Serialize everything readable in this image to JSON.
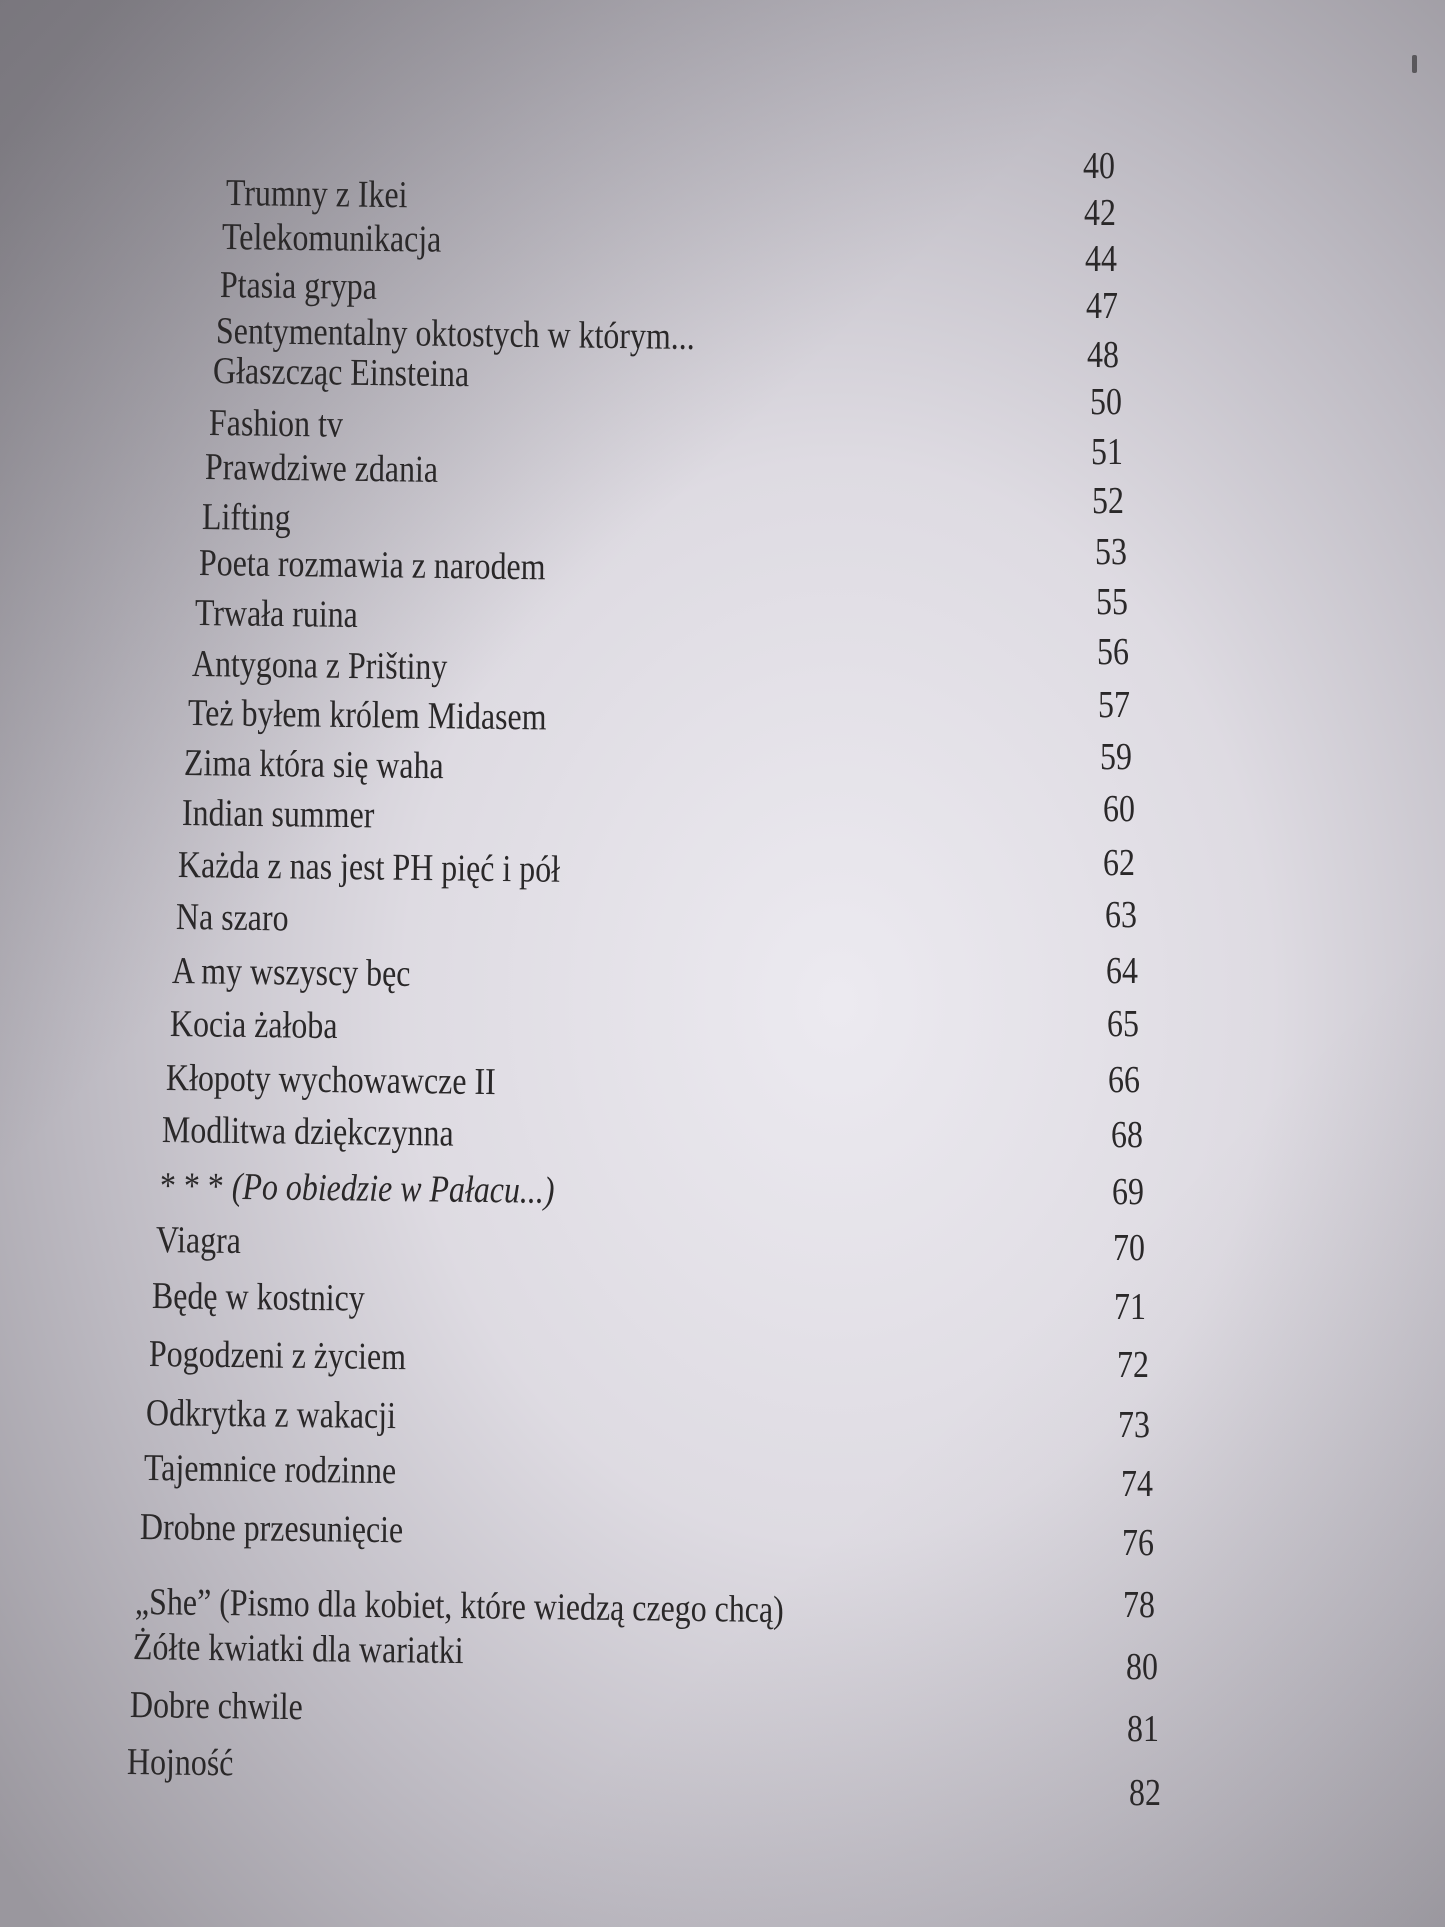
{
  "toc": {
    "entries": [
      {
        "title": "Trumny z Ikei",
        "page": "40"
      },
      {
        "title": "Telekomunikacja",
        "page": "42"
      },
      {
        "title": "Ptasia grypa",
        "page": "44"
      },
      {
        "title": "Sentymentalny oktostych w którym...",
        "page": "47"
      },
      {
        "title": "Głaszcząc Einsteina",
        "page": "48"
      },
      {
        "title": "Fashion tv",
        "page": "50"
      },
      {
        "title": "Prawdziwe zdania",
        "page": "51"
      },
      {
        "title": "Lifting",
        "page": "52"
      },
      {
        "title": "Poeta rozmawia  z narodem",
        "page": "53"
      },
      {
        "title": "Trwała ruina",
        "page": "55"
      },
      {
        "title": "Antygona z Prištiny",
        "page": "56"
      },
      {
        "title": "Też byłem królem Midasem",
        "page": "57"
      },
      {
        "title": "Zima która się waha",
        "page": "59"
      },
      {
        "title": "Indian summer",
        "page": "60"
      },
      {
        "title": "Każda z nas jest PH pięć i pół",
        "page": "62"
      },
      {
        "title": "Na szaro",
        "page": "63"
      },
      {
        "title": "A my wszyscy bęc",
        "page": "64"
      },
      {
        "title": "Kocia żałoba",
        "page": "65"
      },
      {
        "title": "Kłopoty wychowawcze  II",
        "page": "66"
      },
      {
        "title": "Modlitwa dziękczynna",
        "page": "68"
      },
      {
        "title": "* * * ",
        "title_italic": "(Po obiedzie w Pałacu...)",
        "page": "69"
      },
      {
        "title": "Viagra",
        "page": "70"
      },
      {
        "title": "Będę w kostnicy",
        "page": "71"
      },
      {
        "title": "Pogodzeni z życiem",
        "page": "72"
      },
      {
        "title": "Odkrytka z wakacji",
        "page": "73"
      },
      {
        "title": "Tajemnice rodzinne",
        "page": "74"
      },
      {
        "title": "Drobne przesunięcie",
        "page": "76"
      },
      {
        "title": "„She” (Pismo dla kobiet, które wiedzą czego chcą)",
        "page": "78"
      },
      {
        "title": "Żółte kwiatki dla wariatki",
        "page": "80"
      },
      {
        "title": "Dobre chwile",
        "page": "81"
      },
      {
        "title": "Hojność",
        "page": "82"
      }
    ]
  }
}
